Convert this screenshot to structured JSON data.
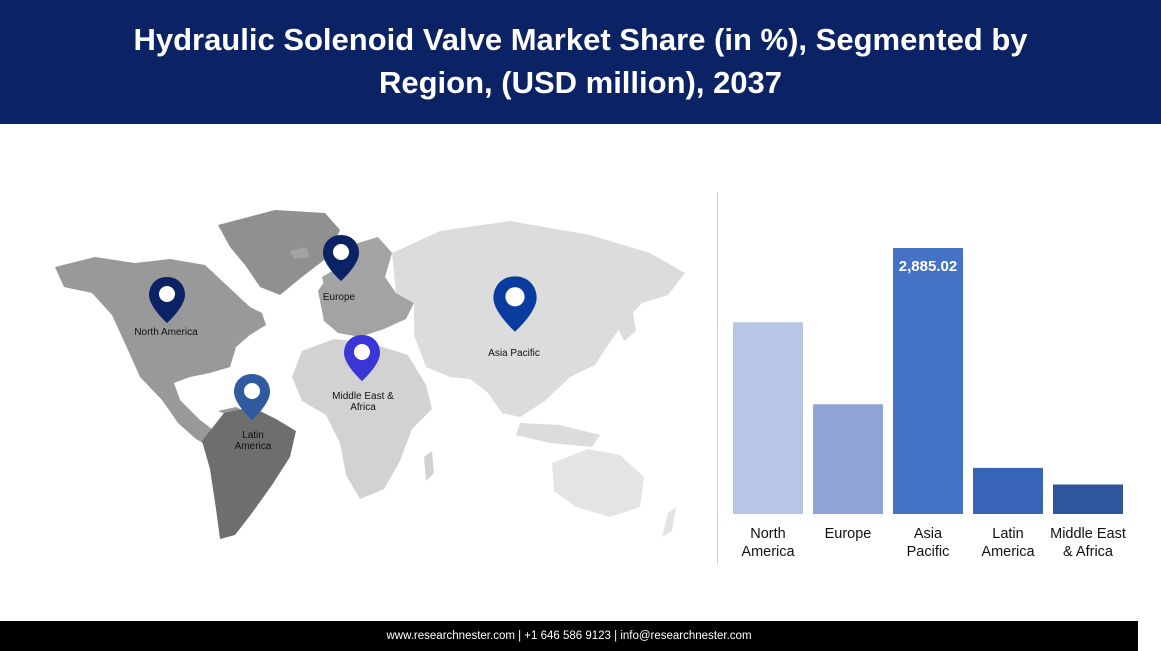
{
  "header": {
    "title": "Hydraulic Solenoid Valve Market Share (in %), Segmented by Region, (USD million), 2037"
  },
  "map": {
    "pins": [
      {
        "key": "north_america",
        "label": "North America",
        "color": "#0b2265"
      },
      {
        "key": "europe",
        "label": "Europe",
        "color": "#0b2265"
      },
      {
        "key": "asia_pacific",
        "label": "Asia Pacific",
        "color": "#0a3ca0"
      },
      {
        "key": "middle_east_africa",
        "label": "Middle East & Africa",
        "color": "#3a36d6"
      },
      {
        "key": "latin_america",
        "label": "Latin America",
        "color": "#2f5aa0"
      }
    ]
  },
  "chart_data": {
    "type": "bar",
    "title": "",
    "xlabel": "",
    "ylabel": "",
    "categories": [
      "North America",
      "Europe",
      "Asia Pacific",
      "Latin America",
      "Middle East & Africa"
    ],
    "values": [
      2080,
      1190,
      2885.02,
      500,
      320
    ],
    "data_labels": [
      "",
      "",
      "2,885.02",
      "",
      ""
    ],
    "colors": [
      "#b7c6e6",
      "#8fa4d6",
      "#4472c4",
      "#3864b8",
      "#2f559c"
    ],
    "ylim": [
      0,
      2885.02
    ],
    "grid": false,
    "legend": "none"
  },
  "footer": {
    "text": "www.researchnester.com | +1 646 586 9123 | info@researchnester.com"
  }
}
